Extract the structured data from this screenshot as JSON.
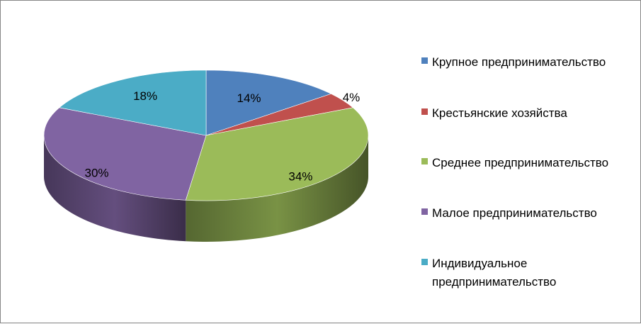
{
  "chart_data": {
    "type": "pie",
    "style": "3d",
    "title": "",
    "categories": [
      "Крупное предпринимательство",
      "Крестьянские хозяйства",
      "Среднее предпринимательство",
      "Малое предпринимательство",
      "Индивидуальное предпринимательство"
    ],
    "values": [
      14,
      4,
      34,
      30,
      18
    ],
    "labels": [
      "14%",
      "4%",
      "34%",
      "30%",
      "18%"
    ],
    "colors": [
      "#4F81BD",
      "#C0504D",
      "#9BBB59",
      "#8064A2",
      "#4BACC6"
    ],
    "legend_position": "right"
  }
}
